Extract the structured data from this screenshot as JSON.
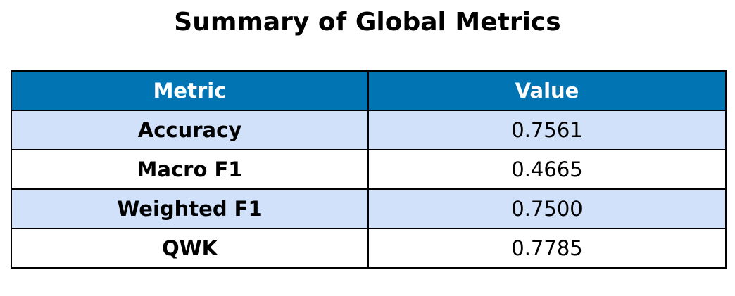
{
  "title": "Summary of Global Metrics",
  "colors": {
    "header_bg": "#0174b4",
    "header_text": "#ffffff",
    "row_shaded": "#d0e1f9",
    "row_plain": "#ffffff",
    "border": "#000000"
  },
  "chart_data": {
    "type": "table",
    "title": "Summary of Global Metrics",
    "columns": [
      "Metric",
      "Value"
    ],
    "rows": [
      [
        "Accuracy",
        "0.7561"
      ],
      [
        "Macro F1",
        "0.4665"
      ],
      [
        "Weighted F1",
        "0.7500"
      ],
      [
        "QWK",
        "0.7785"
      ]
    ]
  }
}
